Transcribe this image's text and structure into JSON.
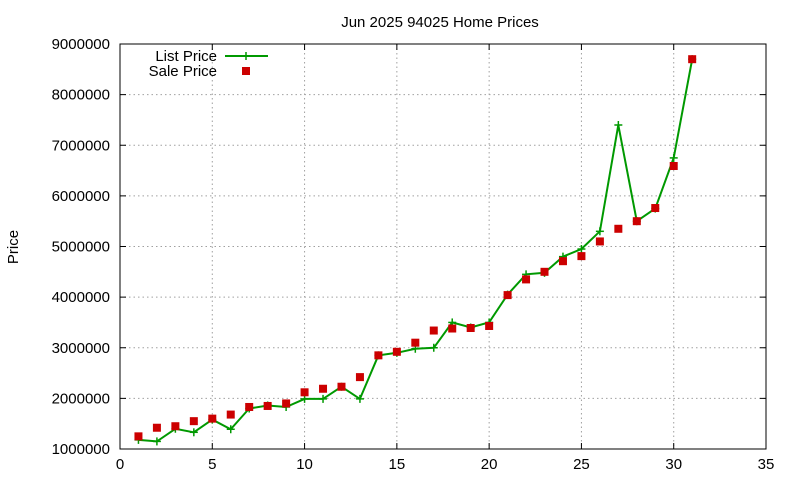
{
  "chart_data": {
    "type": "line",
    "title": "Jun 2025 94025 Home Prices",
    "xlabel": "",
    "ylabel": "Price",
    "xlim": [
      0,
      35
    ],
    "ylim": [
      1000000,
      9000000
    ],
    "xticks": [
      0,
      5,
      10,
      15,
      20,
      25,
      30,
      35
    ],
    "yticks": [
      1000000,
      2000000,
      3000000,
      4000000,
      5000000,
      6000000,
      7000000,
      8000000,
      9000000
    ],
    "grid": true,
    "legend_position": "top-left",
    "series": [
      {
        "name": "List Price",
        "style": "line+plus-markers",
        "color": "#009900",
        "x": [
          1,
          2,
          3,
          4,
          5,
          6,
          7,
          8,
          9,
          10,
          11,
          12,
          13,
          14,
          15,
          16,
          17,
          18,
          19,
          20,
          21,
          22,
          23,
          24,
          25,
          26,
          27,
          28,
          29,
          30,
          31
        ],
        "y": [
          1180000,
          1150000,
          1400000,
          1330000,
          1580000,
          1390000,
          1800000,
          1860000,
          1830000,
          1990000,
          1990000,
          2230000,
          1990000,
          2850000,
          2900000,
          2980000,
          3000000,
          3500000,
          3400000,
          3500000,
          4050000,
          4450000,
          4480000,
          4800000,
          4950000,
          5300000,
          7400000,
          5500000,
          5750000,
          6750000,
          8700000
        ]
      },
      {
        "name": "Sale Price",
        "style": "square-markers",
        "color": "#cc0000",
        "x": [
          1,
          2,
          3,
          4,
          5,
          6,
          7,
          8,
          9,
          10,
          11,
          12,
          13,
          14,
          15,
          16,
          17,
          18,
          19,
          20,
          21,
          22,
          23,
          24,
          25,
          26,
          27,
          28,
          29,
          30,
          31
        ],
        "y": [
          1250000,
          1420000,
          1450000,
          1550000,
          1600000,
          1680000,
          1830000,
          1850000,
          1900000,
          2120000,
          2190000,
          2230000,
          2420000,
          2850000,
          2920000,
          3100000,
          3340000,
          3380000,
          3390000,
          3430000,
          4040000,
          4350000,
          4500000,
          4710000,
          4810000,
          5100000,
          5350000,
          5500000,
          5760000,
          6590000,
          8700000
        ]
      }
    ]
  }
}
